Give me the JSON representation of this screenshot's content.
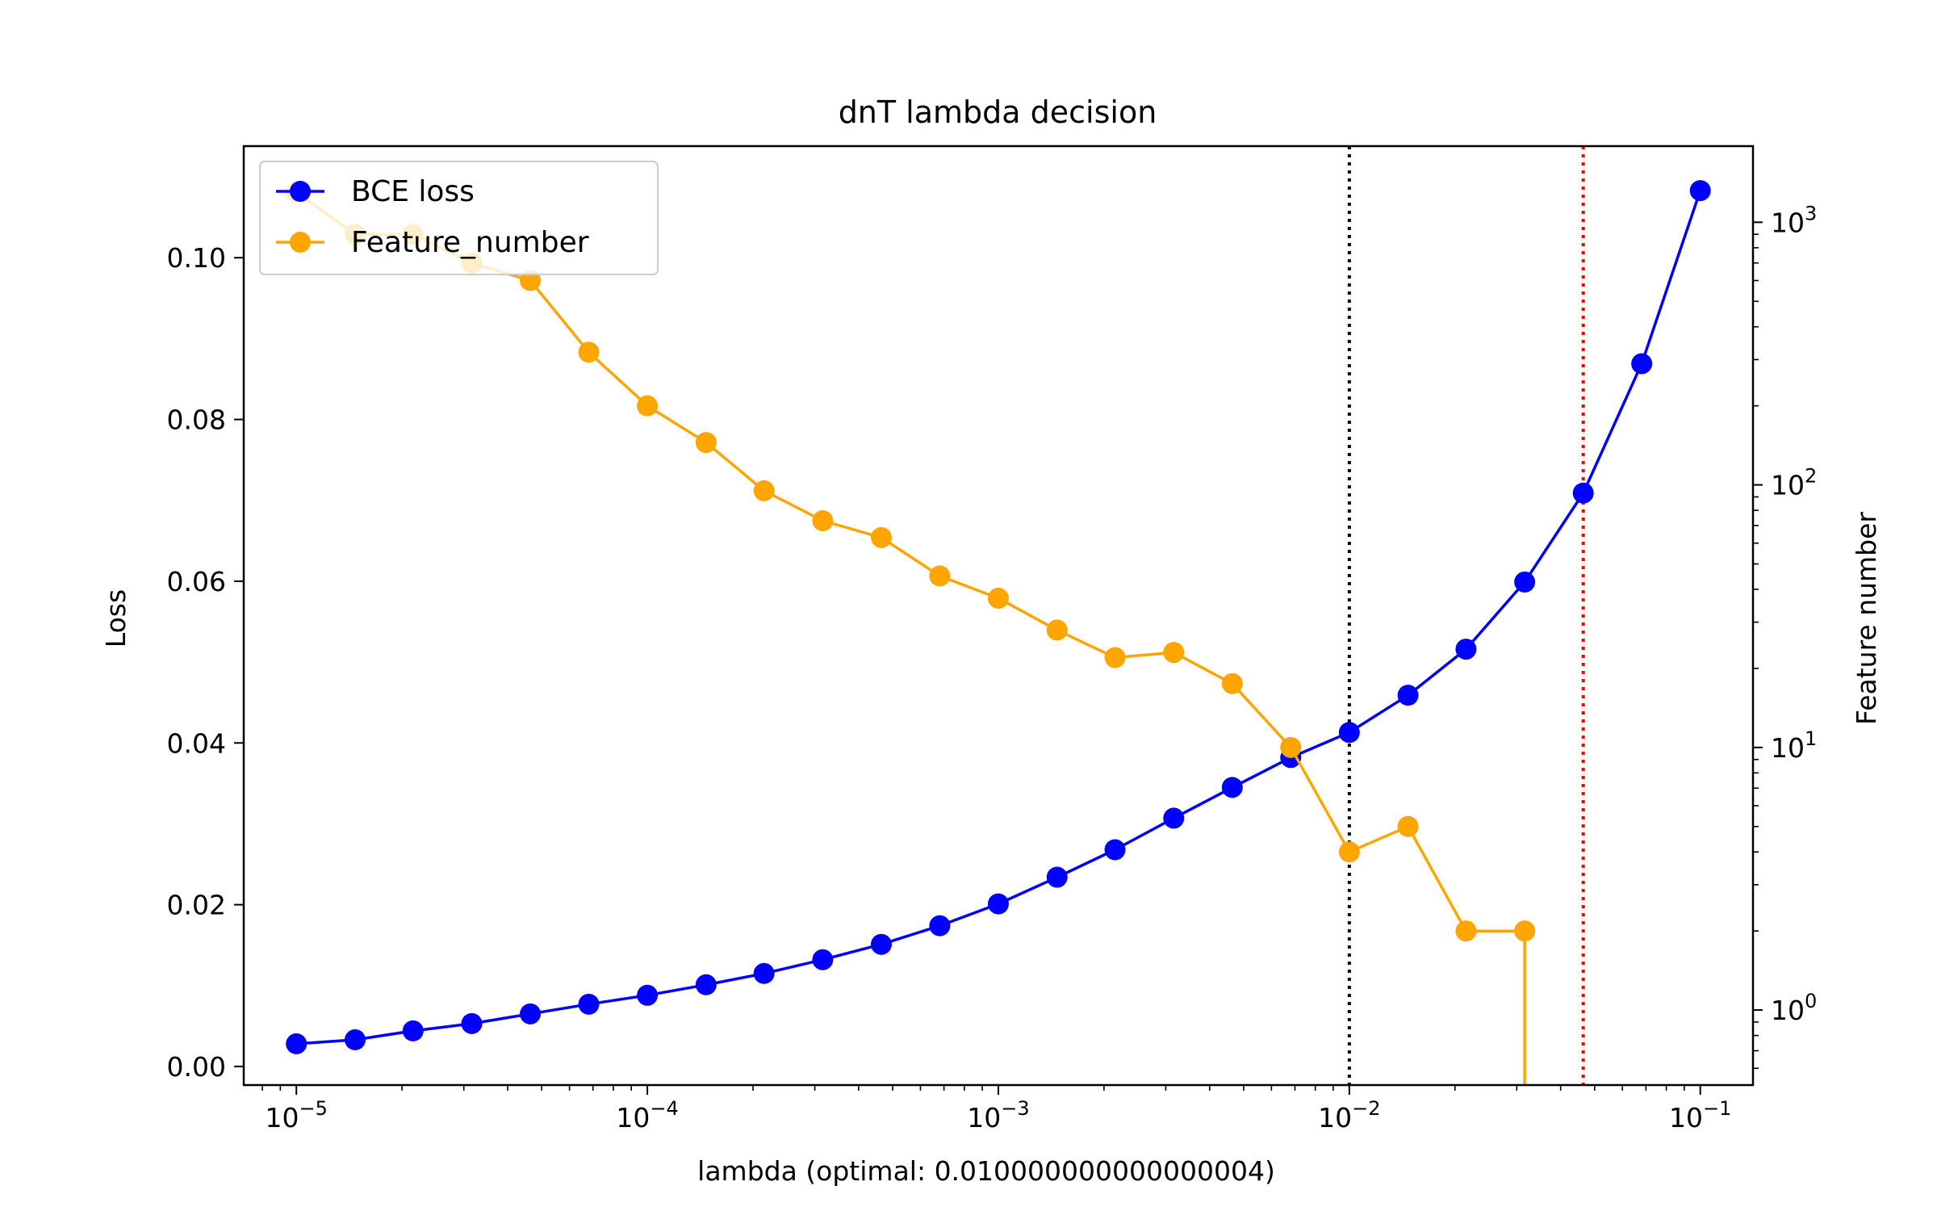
{
  "chart_data": {
    "type": "line",
    "title": "dnT lambda decision",
    "xlabel": "lambda (optimal: 0.010000000000000004)",
    "ylabel": "Loss",
    "y2label": "Feature number",
    "xscale": "log",
    "y2scale": "log",
    "xlim": [
      7.08e-06,
      0.1413
    ],
    "ylim": [
      -0.0023,
      0.1138
    ],
    "y2lim": [
      0.518,
      1950
    ],
    "x_ticks": [
      {
        "value": 1e-05,
        "mantissa": "10",
        "exp": "−5"
      },
      {
        "value": 0.0001,
        "mantissa": "10",
        "exp": "−4"
      },
      {
        "value": 0.001,
        "mantissa": "10",
        "exp": "−3"
      },
      {
        "value": 0.01,
        "mantissa": "10",
        "exp": "−2"
      },
      {
        "value": 0.1,
        "mantissa": "10",
        "exp": "−1"
      }
    ],
    "y_ticks": [
      {
        "value": 0.0,
        "label": "0.00"
      },
      {
        "value": 0.02,
        "label": "0.02"
      },
      {
        "value": 0.04,
        "label": "0.04"
      },
      {
        "value": 0.06,
        "label": "0.06"
      },
      {
        "value": 0.08,
        "label": "0.08"
      },
      {
        "value": 0.1,
        "label": "0.10"
      }
    ],
    "y2_ticks": [
      {
        "value": 1,
        "mantissa": "10",
        "exp": "0"
      },
      {
        "value": 10,
        "mantissa": "10",
        "exp": "1"
      },
      {
        "value": 100,
        "mantissa": "10",
        "exp": "2"
      },
      {
        "value": 1000,
        "mantissa": "10",
        "exp": "3"
      }
    ],
    "x": [
      1e-05,
      1.47e-05,
      2.15e-05,
      3.16e-05,
      4.64e-05,
      6.81e-05,
      0.0001,
      0.000147,
      0.000215,
      0.000316,
      0.000464,
      0.000681,
      0.001,
      0.00147,
      0.00215,
      0.00316,
      0.00464,
      0.00681,
      0.01,
      0.0147,
      0.0215,
      0.0316,
      0.0464,
      0.0681,
      0.1
    ],
    "series": [
      {
        "name": "BCE loss",
        "axis": "left",
        "color": "#0000ff",
        "values": [
          0.0028,
          0.0033,
          0.0044,
          0.0053,
          0.0065,
          0.0077,
          0.0088,
          0.0101,
          0.0115,
          0.0132,
          0.0151,
          0.0174,
          0.0201,
          0.0234,
          0.0268,
          0.0307,
          0.0345,
          0.0382,
          0.0413,
          0.0459,
          0.0516,
          0.0599,
          0.0709,
          0.0869,
          0.1083
        ]
      },
      {
        "name": "Feature_number",
        "axis": "right",
        "color": "#ffa500",
        "values": [
          1300,
          900,
          900,
          700,
          600,
          320,
          200,
          145,
          95,
          73,
          63,
          45,
          37,
          28,
          22,
          23,
          17.5,
          10,
          4,
          5,
          2,
          2,
          null,
          null,
          null
        ],
        "drop_to_zero_after_index": 21
      }
    ],
    "vlines": [
      {
        "x": 0.01,
        "color": "#000000",
        "style": "dotted"
      },
      {
        "x": 0.0464,
        "color": "#ff0000",
        "style": "dotted"
      }
    ],
    "legend": {
      "position": "top-left",
      "entries": [
        "BCE loss",
        "Feature_number"
      ]
    },
    "grid": false
  }
}
